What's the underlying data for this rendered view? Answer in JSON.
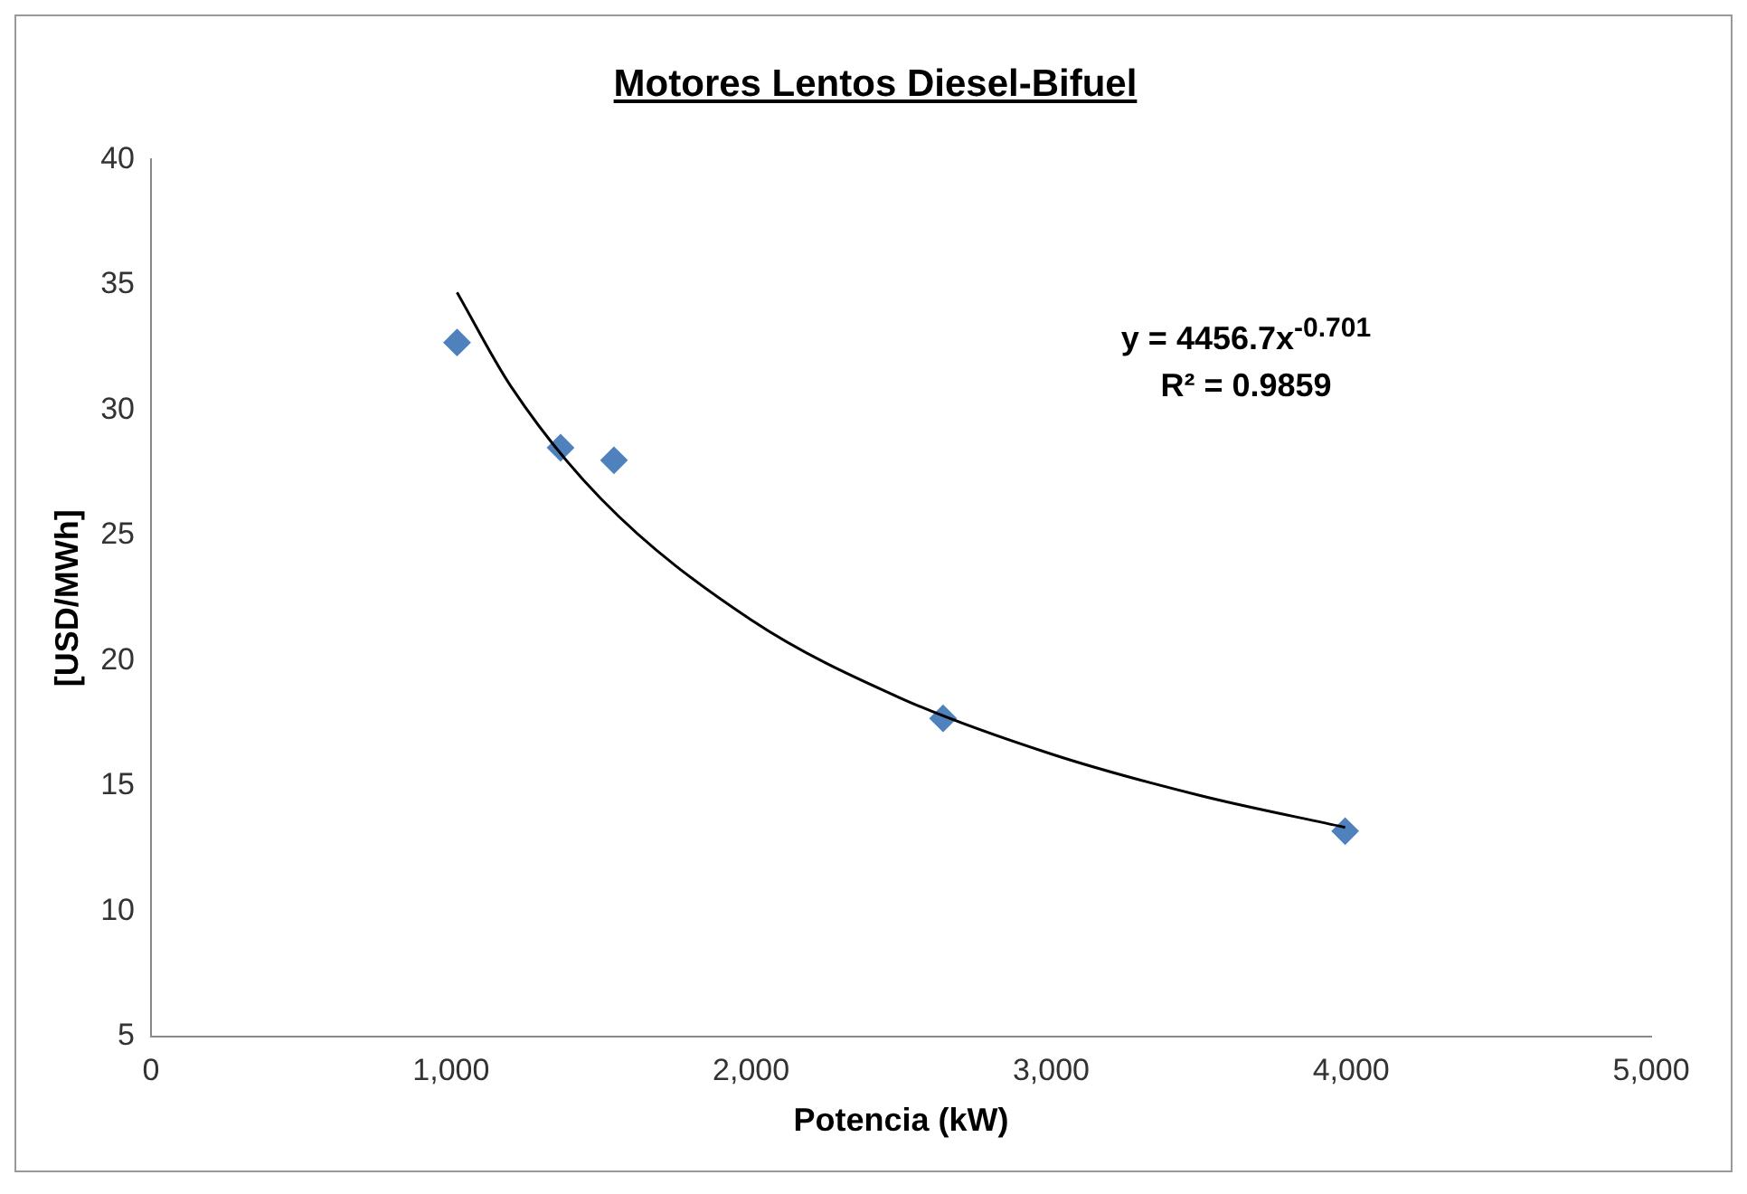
{
  "chart_data": {
    "type": "scatter",
    "title": "Motores Lentos Diesel-Bifuel",
    "xlabel": "Potencia (kW)",
    "ylabel": "[USD/MWh]",
    "series": [
      {
        "color": "#4f81bd",
        "marker": "diamond",
        "x": [
          1020,
          1365,
          1543,
          2640,
          3980
        ],
        "values": [
          32.7,
          28.5,
          28.0,
          17.7,
          13.2
        ]
      },
      {
        "type": "line",
        "marker": "none",
        "color": "#000000",
        "x": [
          1020,
          1200,
          1500,
          2000,
          2500,
          3000,
          3500,
          3980
        ],
        "values": [
          34.7,
          30.94,
          26.46,
          21.63,
          18.5,
          16.28,
          14.61,
          13.35
        ]
      }
    ],
    "xlim": [
      0,
      5000
    ],
    "xticks": [
      0,
      {
        "value": 1000,
        "label": "1,000"
      },
      {
        "value": 2000,
        "label": "2,000"
      },
      {
        "value": 3000,
        "label": "3,000"
      },
      {
        "value": 4000,
        "label": "4,000"
      },
      {
        "value": 5000,
        "label": "5,000"
      }
    ],
    "ylim": [
      5,
      40
    ],
    "yticks": [
      5,
      10,
      15,
      20,
      25,
      30,
      35,
      40
    ],
    "grid": false,
    "legend": false,
    "annotations": [
      "y = 4456.7x$^{-0.701}$",
      "R² = 0.9859"
    ]
  }
}
